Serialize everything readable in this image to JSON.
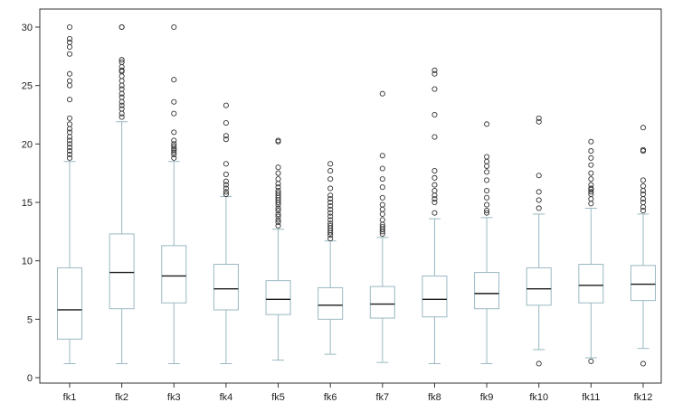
{
  "chart_data": {
    "type": "boxplot",
    "title": "",
    "xlabel": "",
    "ylabel": "",
    "ylim": [
      0,
      30
    ],
    "yticks": [
      "0",
      "5",
      "10",
      "15",
      "20",
      "25",
      "30"
    ],
    "grid": false,
    "legend": "none",
    "colors": {
      "box": "#9ab8c2",
      "median": "#1a1a1a",
      "axis": "#333333",
      "outlier": "#333333"
    },
    "categories": [
      "fk1",
      "fk2",
      "fk3",
      "fk4",
      "fk5",
      "fk6",
      "fk7",
      "fk8",
      "fk9",
      "fk10",
      "fk11",
      "fk12"
    ],
    "boxes": [
      {
        "whisker_low": 1.2,
        "q1": 3.3,
        "median": 5.8,
        "q3": 9.4,
        "whisker_high": 18.5,
        "outliers": [
          18.8,
          19.1,
          19.4,
          19.7,
          20.0,
          20.3,
          20.6,
          21.0,
          21.3,
          21.7,
          22.2,
          23.8,
          25.0,
          25.4,
          26.0,
          27.7,
          28.3,
          28.7,
          29.0,
          30.0
        ]
      },
      {
        "whisker_low": 1.2,
        "q1": 5.9,
        "median": 9.0,
        "q3": 12.3,
        "whisker_high": 21.9,
        "outliers": [
          22.3,
          22.6,
          23.0,
          23.3,
          23.6,
          24.0,
          24.3,
          24.7,
          25.0,
          25.4,
          25.8,
          26.2,
          26.3,
          26.6,
          27.0,
          27.2,
          30.0,
          30.0
        ]
      },
      {
        "whisker_low": 1.2,
        "q1": 6.4,
        "median": 8.7,
        "q3": 11.3,
        "whisker_high": 18.5,
        "outliers": [
          18.8,
          19.1,
          19.3,
          19.5,
          19.6,
          19.8,
          20.0,
          20.3,
          21.0,
          22.6,
          23.6,
          25.5,
          30.0
        ]
      },
      {
        "whisker_low": 1.2,
        "q1": 5.8,
        "median": 7.6,
        "q3": 9.7,
        "whisker_high": 15.5,
        "outliers": [
          15.7,
          15.9,
          16.2,
          16.5,
          16.8,
          17.4,
          18.3,
          20.4,
          20.7,
          21.8,
          23.3
        ]
      },
      {
        "whisker_low": 1.5,
        "q1": 5.4,
        "median": 6.7,
        "q3": 8.3,
        "whisker_high": 12.7,
        "outliers": [
          13.0,
          13.3,
          13.5,
          13.8,
          14.0,
          14.3,
          14.5,
          14.8,
          15.0,
          15.2,
          15.4,
          15.6,
          15.8,
          16.0,
          16.3,
          16.6,
          17.0,
          17.5,
          18.0,
          20.2,
          20.3
        ]
      },
      {
        "whisker_low": 2.0,
        "q1": 5.0,
        "median": 6.2,
        "q3": 7.7,
        "whisker_high": 11.7,
        "outliers": [
          11.9,
          12.2,
          12.4,
          12.6,
          12.8,
          13.0,
          13.2,
          13.5,
          13.8,
          14.1,
          14.4,
          14.7,
          15.0,
          15.3,
          15.6,
          16.2,
          17.0,
          17.7,
          18.3
        ]
      },
      {
        "whisker_low": 1.3,
        "q1": 5.1,
        "median": 6.3,
        "q3": 7.8,
        "whisker_high": 12.0,
        "outliers": [
          12.3,
          12.5,
          12.7,
          12.9,
          13.1,
          13.5,
          14.0,
          14.4,
          14.8,
          15.4,
          16.3,
          17.0,
          17.9,
          19.0,
          24.3
        ]
      },
      {
        "whisker_low": 1.2,
        "q1": 5.2,
        "median": 6.7,
        "q3": 8.7,
        "whisker_high": 13.6,
        "outliers": [
          14.1,
          15.0,
          15.3,
          15.6,
          16.0,
          16.5,
          17.1,
          17.7,
          20.6,
          22.5,
          24.7,
          26.0,
          26.3
        ]
      },
      {
        "whisker_low": 1.2,
        "q1": 5.9,
        "median": 7.2,
        "q3": 9.0,
        "whisker_high": 13.7,
        "outliers": [
          14.1,
          14.3,
          14.8,
          15.4,
          16.0,
          16.9,
          17.6,
          18.1,
          18.5,
          18.9,
          21.7
        ]
      },
      {
        "whisker_low": 2.4,
        "q1": 6.2,
        "median": 7.6,
        "q3": 9.4,
        "whisker_high": 14.0,
        "outliers": [
          1.2,
          14.5,
          15.2,
          15.9,
          17.3,
          21.9,
          22.2
        ]
      },
      {
        "whisker_low": 1.7,
        "q1": 6.4,
        "median": 7.9,
        "q3": 9.7,
        "whisker_high": 14.5,
        "outliers": [
          1.4,
          14.9,
          15.3,
          15.7,
          15.9,
          16.1,
          16.2,
          16.5,
          17.0,
          17.5,
          18.2,
          18.8,
          19.4,
          20.2
        ]
      },
      {
        "whisker_low": 2.5,
        "q1": 6.6,
        "median": 8.0,
        "q3": 9.6,
        "whisker_high": 14.0,
        "outliers": [
          1.2,
          14.3,
          14.6,
          15.0,
          15.3,
          15.7,
          16.0,
          16.4,
          16.9,
          19.4,
          19.5,
          21.4
        ]
      }
    ]
  }
}
